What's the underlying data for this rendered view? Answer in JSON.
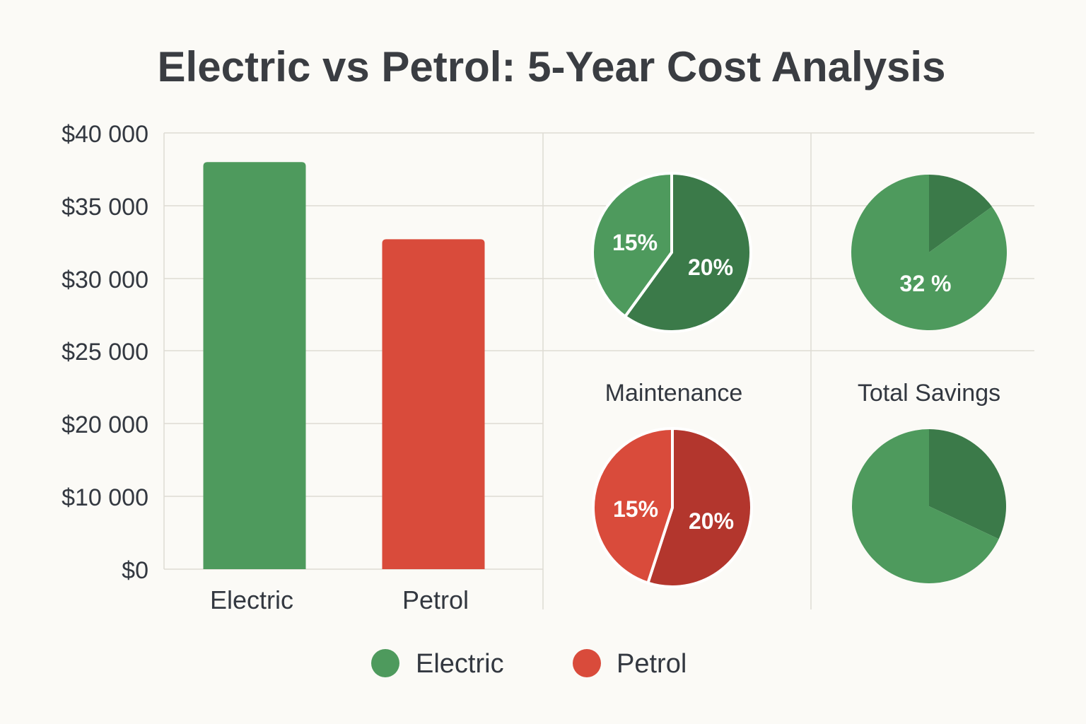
{
  "title": "Electric vs Petrol: 5-Year Cost Analysis",
  "colors": {
    "electric": "#4e9a5d",
    "electric_dark": "#3b7a49",
    "petrol": "#d94b3b",
    "petrol_dark": "#b3362d",
    "grid": "#dedbd4",
    "text": "#333840",
    "background": "#fbfaf6",
    "label_on_fill": "#ffffff"
  },
  "chart_data": [
    {
      "type": "bar",
      "title": "",
      "categories": [
        "Electric",
        "Petrol"
      ],
      "values": [
        38000,
        32700
      ],
      "colors": [
        "#4e9a5d",
        "#d94b3b"
      ],
      "ytick_values": [
        0,
        10000,
        20000,
        25000,
        30000,
        35000,
        40000
      ],
      "ytick_labels": [
        "$0",
        "$10 000",
        "$20 000",
        "$25 000",
        "$30 000",
        "$35 000",
        "$40 000"
      ],
      "xlabel": "",
      "ylabel": "",
      "grid": true
    },
    {
      "type": "pie",
      "title": "",
      "slices": [
        {
          "label": "15%",
          "value": 40,
          "color": "#4e9a5d"
        },
        {
          "label": "20%",
          "value": 60,
          "color": "#3b7a49"
        }
      ]
    },
    {
      "type": "pie",
      "title": "",
      "slices": [
        {
          "label": "32 %",
          "value": 85,
          "color": "#4e9a5d"
        },
        {
          "label": "",
          "value": 15,
          "color": "#3b7a49"
        }
      ]
    },
    {
      "type": "pie",
      "title": "Maintenance",
      "slices": [
        {
          "label": "15%",
          "value": 45,
          "color": "#d94b3b"
        },
        {
          "label": "20%",
          "value": 55,
          "color": "#b3362d"
        }
      ]
    },
    {
      "type": "pie",
      "title": "Total Savings",
      "slices": [
        {
          "label": "",
          "value": 68,
          "color": "#4e9a5d"
        },
        {
          "label": "",
          "value": 32,
          "color": "#3b7a49"
        }
      ]
    }
  ],
  "legend": [
    {
      "label": "Electric",
      "color": "#4e9a5d"
    },
    {
      "label": "Petrol",
      "color": "#d94b3b"
    }
  ]
}
